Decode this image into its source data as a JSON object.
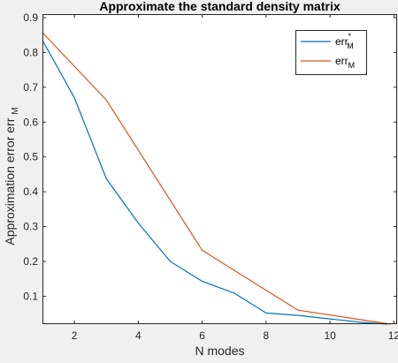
{
  "chart_data": {
    "type": "line",
    "title": "Approximate the standard density matrix",
    "xlabel": "N modes",
    "ylabel": {
      "main": "Approximation error err",
      "subscript": "M"
    },
    "xlim": [
      1,
      12.1
    ],
    "ylim": [
      0.02,
      0.91
    ],
    "xticks": [
      2,
      4,
      6,
      8,
      10,
      12
    ],
    "yticks": [
      0.1,
      0.2,
      0.3,
      0.4,
      0.5,
      0.6,
      0.7,
      0.8,
      0.9
    ],
    "xtick_labels": [
      "2",
      "4",
      "6",
      "8",
      "10",
      "12"
    ],
    "ytick_labels": [
      "0.1",
      "0.2",
      "0.3",
      "0.4",
      "0.5",
      "0.6",
      "0.7",
      "0.8",
      "0.9"
    ],
    "grid": false,
    "legend_position": "top-right",
    "series": [
      {
        "label": {
          "main": "err",
          "superscript": "*",
          "subscript": "M"
        },
        "color": "#0072bd",
        "x": [
          1,
          2,
          3,
          4,
          5,
          6,
          7,
          8,
          9,
          10,
          11,
          11.8
        ],
        "y": [
          0.835,
          0.67,
          0.437,
          0.31,
          0.2,
          0.143,
          0.109,
          0.052,
          0.045,
          0.035,
          0.025,
          0.02
        ]
      },
      {
        "label": {
          "main": "err",
          "superscript": "",
          "subscript": "M"
        },
        "color": "#d95319",
        "x": [
          1,
          3,
          6,
          9,
          11.9
        ],
        "y": [
          0.857,
          0.663,
          0.232,
          0.06,
          0.02
        ]
      }
    ]
  }
}
